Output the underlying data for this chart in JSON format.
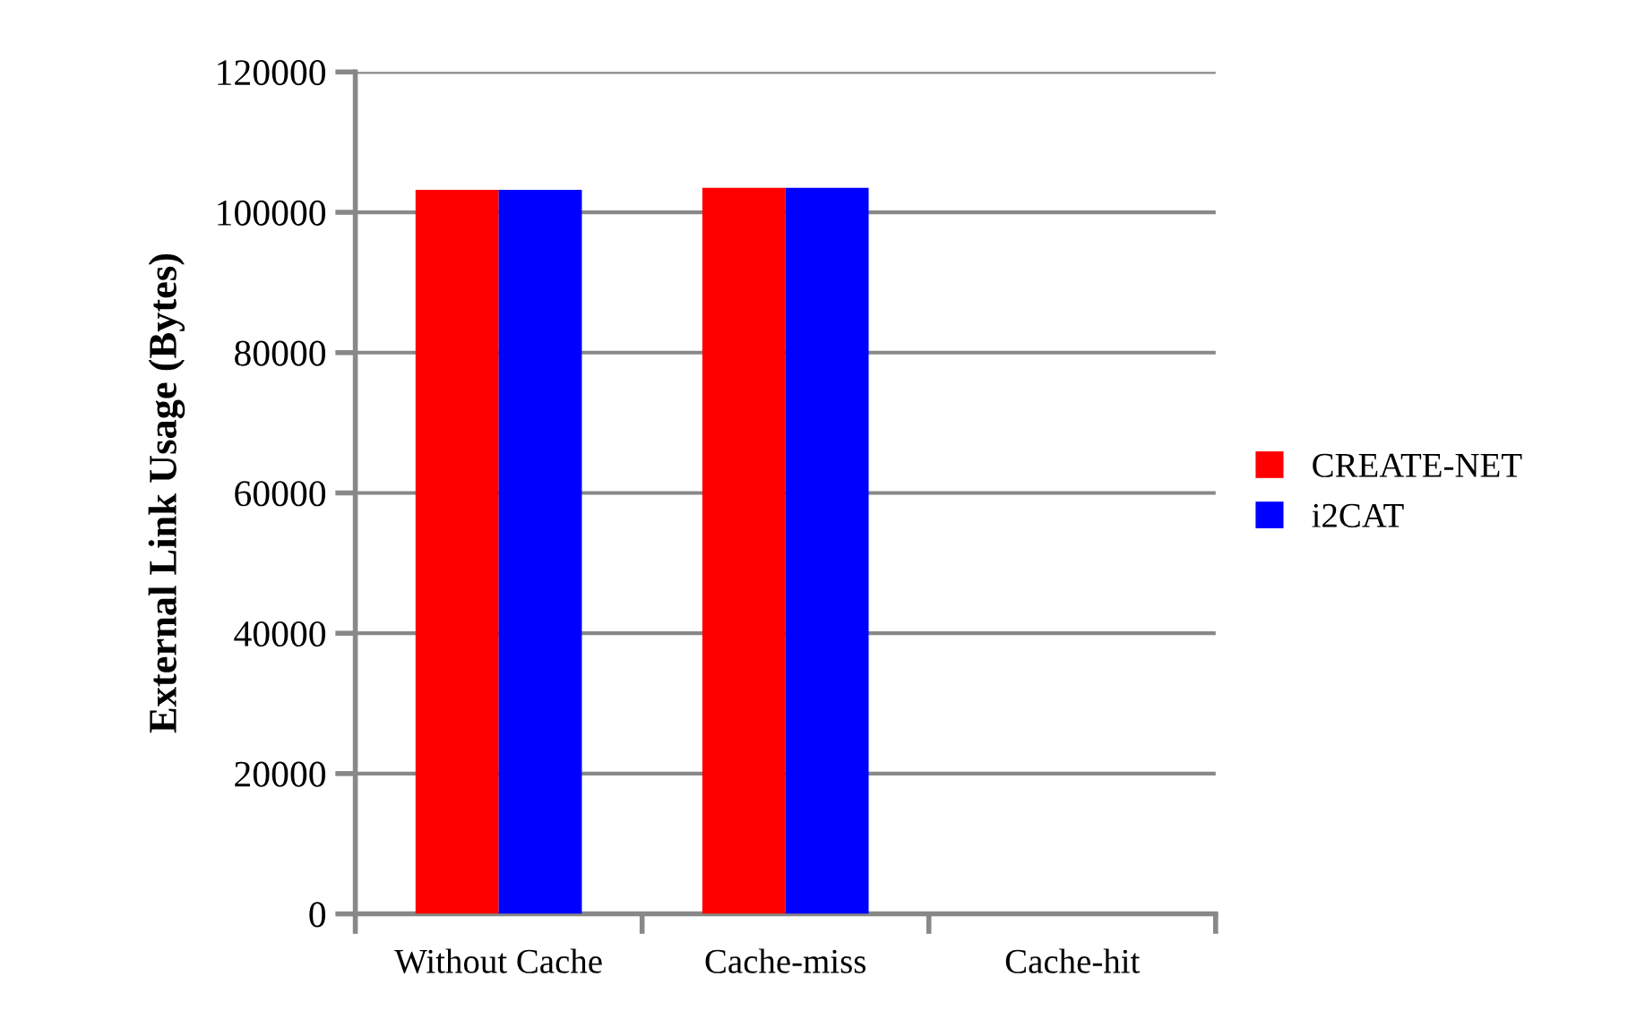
{
  "chart_data": {
    "type": "bar",
    "ylabel": "External Link Usage (Bytes)",
    "categories": [
      "Without Cache",
      "Cache-miss",
      "Cache-hit"
    ],
    "series": [
      {
        "name": "CREATE-NET",
        "color": "#ff0000",
        "values": [
          103200,
          103500,
          0
        ]
      },
      {
        "name": "i2CAT",
        "color": "#0000ff",
        "values": [
          103200,
          103500,
          0
        ]
      }
    ],
    "ylim": [
      0,
      120000
    ],
    "yticks": [
      0,
      20000,
      40000,
      60000,
      80000,
      100000,
      120000
    ],
    "grid": "y",
    "legend": "right"
  }
}
